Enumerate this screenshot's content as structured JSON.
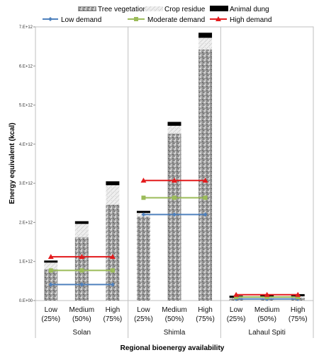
{
  "chart_data": {
    "type": "bar",
    "stacked": true,
    "xlabel": "Regional bioenergy availability",
    "ylabel": "Energy equivalent (kcal)",
    "ylim": [
      0,
      7000000000000.0
    ],
    "yticks": [
      "0.E+00",
      "1.E+12",
      "2.E+12",
      "3.E+12",
      "4.E+12",
      "5.E+12",
      "6.E+12",
      "7.E+12"
    ],
    "legend_position": "top",
    "groups": [
      {
        "name": "Solan",
        "categories": [
          "Low (25%)",
          "Medium (50%)",
          "High (75%)"
        ],
        "lines": [
          "Low",
          "(25%)",
          "Medium",
          "(50%)",
          "High",
          "(75%)"
        ]
      },
      {
        "name": "Shimla",
        "categories": [
          "Low (25%)",
          "Medium (50%)",
          "High (75%)"
        ],
        "lines": [
          "Low",
          "(25%)",
          "Medium",
          "(50%)",
          "High",
          "(75%)"
        ]
      },
      {
        "name": "Lahaul Spiti",
        "categories": [
          "Low (25%)",
          "Medium (50%)",
          "High (75%)"
        ],
        "lines": [
          "Low",
          "(25%)",
          "Medium",
          "(50%)",
          "High",
          "(75%)"
        ]
      }
    ],
    "series": [
      {
        "name": "Tree vegetation",
        "color": "#aaaaaa",
        "values": [
          800000000000.0,
          1620000000000.0,
          2450000000000.0,
          2150000000000.0,
          4270000000000.0,
          6420000000000.0,
          50000000000.0,
          60000000000.0,
          70000000000.0
        ]
      },
      {
        "name": "Crop residue",
        "color": "#e8e8e8",
        "values": [
          170000000000.0,
          340000000000.0,
          500000000000.0,
          90000000000.0,
          200000000000.0,
          300000000000.0,
          20000000000.0,
          30000000000.0,
          40000000000.0
        ]
      },
      {
        "name": "Animal dung",
        "color": "#000000",
        "values": [
          40000000000.0,
          70000000000.0,
          100000000000.0,
          50000000000.0,
          100000000000.0,
          130000000000.0,
          10000000000.0,
          10000000000.0,
          10000000000.0
        ]
      }
    ],
    "demand_lines": [
      {
        "name": "Low demand",
        "color": "#4f81bd",
        "marker": "diamond",
        "values": [
          410000000000.0,
          2200000000000.0,
          40000000000.0
        ]
      },
      {
        "name": "Moderate demand",
        "color": "#9bbb59",
        "marker": "square",
        "values": [
          770000000000.0,
          2630000000000.0,
          90000000000.0
        ]
      },
      {
        "name": "High demand",
        "color": "#e31a1c",
        "marker": "triangle",
        "values": [
          1120000000000.0,
          3070000000000.0,
          150000000000.0
        ]
      }
    ]
  }
}
